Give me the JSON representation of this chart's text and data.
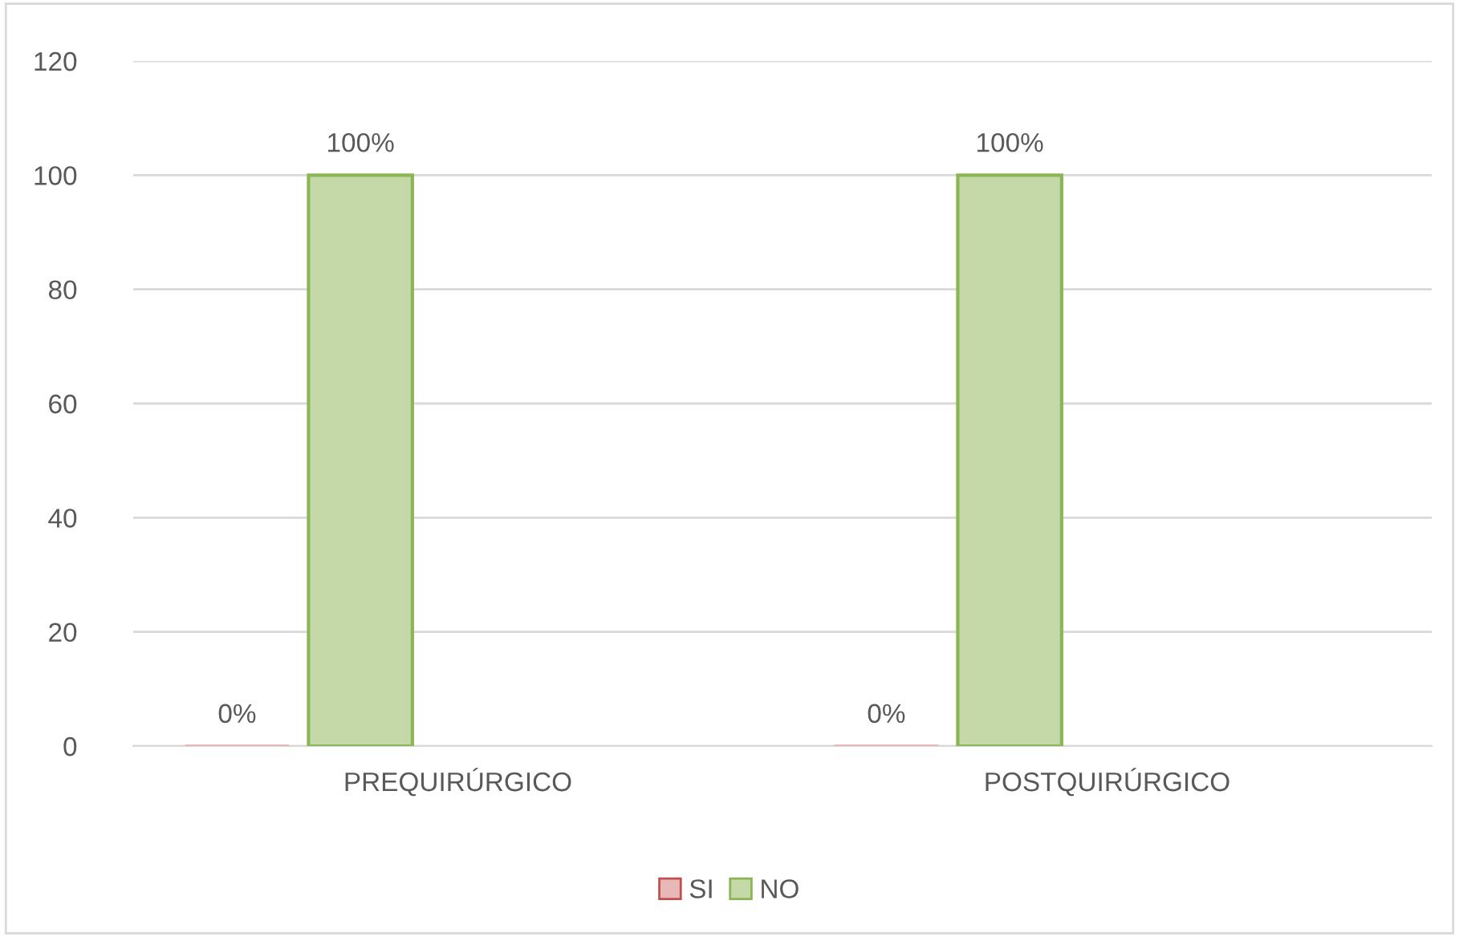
{
  "chart_data": {
    "type": "bar",
    "categories": [
      "PREQUIRÚRGICO",
      "POSTQUIRÚRGICO"
    ],
    "series": [
      {
        "name": "SI",
        "color": "#e6b9b8",
        "values": [
          0,
          0
        ],
        "value_labels": [
          "0%",
          "0%"
        ]
      },
      {
        "name": "NO",
        "color": "#c4d9a7",
        "values": [
          100,
          100
        ],
        "value_labels": [
          "100%",
          "100%"
        ]
      }
    ],
    "ylim": [
      0,
      120
    ],
    "yticks": [
      0,
      20,
      40,
      60,
      80,
      100,
      120
    ],
    "grid": "y",
    "legend": "bottom"
  }
}
